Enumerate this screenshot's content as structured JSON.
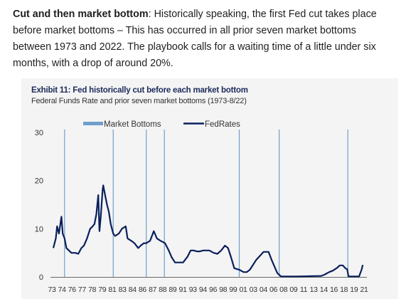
{
  "intro": {
    "bold": "Cut and then market bottom",
    "text": ": Historically speaking, the first Fed cut takes place before market bottoms – This has occurred in all prior seven market bottoms between 1973 and 2022. The playbook calls for a waiting time of a little under six months, with a drop of around 20%."
  },
  "chart_data": {
    "type": "line",
    "title": "Exhibit 11: Fed historically cut before each market bottom",
    "subtitle": "Federal Funds Rate and prior seven market bottoms (1973-8/22)",
    "xlabel": "",
    "ylabel": "",
    "ylim": [
      0,
      30
    ],
    "xlim": [
      1973,
      2022.8
    ],
    "yticks": [
      0,
      10,
      20,
      30
    ],
    "xtick_labels": [
      "73",
      "74",
      "76",
      "77",
      "78",
      "79",
      "81",
      "83",
      "84",
      "86",
      "87",
      "88",
      "89",
      "91",
      "93",
      "94",
      "96",
      "98",
      "99",
      "01",
      "03",
      "04",
      "06",
      "08",
      "09",
      "11",
      "13",
      "14",
      "16",
      "18",
      "19",
      "21"
    ],
    "grid": false,
    "legend_position": "top",
    "colors": {
      "fed_rates": "#0a1f5c",
      "market_bottoms": "#6f9fcc",
      "panel": "#f4f4f4"
    },
    "series": [
      {
        "name": "FedRates",
        "x": [
          1973.0,
          1973.4,
          1973.6,
          1973.9,
          1974.3,
          1974.5,
          1974.8,
          1975.1,
          1975.5,
          1975.9,
          1976.5,
          1977.0,
          1977.5,
          1977.9,
          1978.4,
          1978.9,
          1979.3,
          1979.6,
          1979.9,
          1980.2,
          1980.4,
          1980.6,
          1980.9,
          1981.0,
          1981.3,
          1981.6,
          1981.9,
          1982.2,
          1982.6,
          1982.9,
          1983.5,
          1984.0,
          1984.6,
          1984.9,
          1985.5,
          1986.0,
          1986.6,
          1987.0,
          1987.5,
          1987.9,
          1988.5,
          1989.1,
          1989.6,
          1990.2,
          1990.9,
          1991.5,
          1992.0,
          1992.5,
          1993.0,
          1993.8,
          1994.5,
          1995.0,
          1995.5,
          1996.0,
          1996.5,
          1997.0,
          1997.5,
          1998.0,
          1998.7,
          1999.3,
          1999.9,
          2000.5,
          2001.0,
          2001.5,
          2002.0,
          2002.8,
          2003.5,
          2004.0,
          2004.5,
          2005.0,
          2005.5,
          2006.2,
          2006.7,
          2007.5,
          2008.0,
          2008.5,
          2008.9,
          2009.5,
          2012.0,
          2015.9,
          2016.5,
          2017.2,
          2017.8,
          2018.5,
          2018.9,
          2019.4,
          2019.8,
          2020.1,
          2020.3,
          2021.0,
          2022.0,
          2022.4,
          2022.6
        ],
        "y": [
          6,
          8,
          10.5,
          9,
          12.5,
          9,
          8,
          6,
          5.5,
          5,
          5,
          4.8,
          6,
          6.5,
          8,
          10,
          10.5,
          11,
          13,
          17,
          9.5,
          12.5,
          18,
          19,
          17,
          15,
          13.5,
          11,
          9,
          8.5,
          9,
          10,
          10.5,
          8,
          7.5,
          7,
          6,
          6.5,
          7,
          7,
          7.5,
          9.5,
          8,
          7.5,
          7,
          5.5,
          4,
          3,
          3,
          3,
          4.2,
          5.5,
          5.5,
          5.3,
          5.3,
          5.5,
          5.5,
          5.5,
          5,
          4.8,
          5.5,
          6.5,
          6,
          4,
          1.8,
          1.5,
          1,
          1,
          1.5,
          2.5,
          3.5,
          4.5,
          5.2,
          5.2,
          3.5,
          2,
          0.8,
          0.1,
          0.1,
          0.2,
          0.5,
          1,
          1.3,
          1.9,
          2.4,
          2.4,
          1.8,
          1.6,
          0.1,
          0.1,
          0.1,
          1.5,
          2.5
        ]
      },
      {
        "name": "Market Bottoms",
        "x": [
          1974.8,
          1982.6,
          1987.9,
          1990.8,
          2002.8,
          2009.2,
          2020.2
        ]
      }
    ]
  }
}
